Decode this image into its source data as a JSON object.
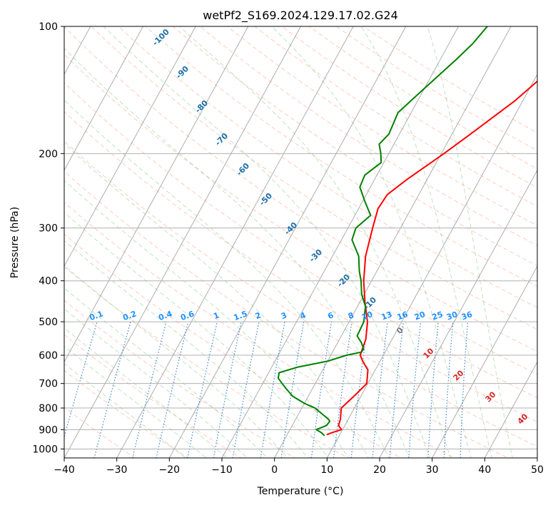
{
  "chart_data": {
    "type": "line",
    "title": "wetPf2_S169.2024.129.17.02.G24",
    "xlabel": "Temperature (°C)",
    "ylabel": "Pressure (hPa)",
    "xlim": [
      -40,
      50
    ],
    "ylim": [
      1050,
      100
    ],
    "y_scale": "log",
    "x_ticks": [
      -40,
      -30,
      -20,
      -10,
      0,
      10,
      20,
      30,
      40,
      50
    ],
    "y_ticks": [
      1000,
      900,
      800,
      700,
      600,
      500,
      400,
      300,
      200,
      100
    ],
    "grid": true,
    "series": [
      {
        "color": "#ff0000",
        "p": [
          925,
          915,
          900,
          880,
          850,
          800,
          750,
          700,
          650,
          620,
          600,
          550,
          500,
          450,
          400,
          350,
          300,
          270,
          250,
          230,
          210,
          200,
          180,
          150,
          130,
          115,
          100
        ],
        "t": [
          7.5,
          8.3,
          9.8,
          8.8,
          8.5,
          7.5,
          8.7,
          9.8,
          8.6,
          6.7,
          5.6,
          5.0,
          3.5,
          1.0,
          -1.5,
          -3.7,
          -5.3,
          -6.3,
          -6.0,
          -3.8,
          -1.0,
          0.5,
          3.5,
          8.5,
          11.5,
          13.5,
          15.0
        ]
      },
      {
        "color": "#008000",
        "p": [
          930,
          915,
          900,
          880,
          860,
          850,
          800,
          780,
          750,
          720,
          700,
          680,
          660,
          640,
          620,
          600,
          590,
          580,
          560,
          540,
          500,
          460,
          430,
          400,
          380,
          350,
          320,
          300,
          280,
          260,
          240,
          225,
          210,
          200,
          190,
          180,
          160,
          140,
          120,
          110,
          100
        ],
        "t": [
          7.2,
          6.3,
          5.0,
          6.5,
          6.7,
          6.2,
          2.5,
          0.0,
          -3.0,
          -5.0,
          -6.3,
          -7.6,
          -8.0,
          -5.0,
          0.0,
          3.0,
          5.5,
          5.6,
          4.5,
          3.0,
          2.8,
          1.5,
          -0.5,
          -2.0,
          -3.3,
          -5.0,
          -8.0,
          -8.5,
          -7.0,
          -9.5,
          -12.0,
          -12.3,
          -10.5,
          -11.5,
          -12.8,
          -12.0,
          -12.5,
          -10.0,
          -7.0,
          -5.5,
          -4.5
        ]
      }
    ],
    "dry_adiabat_labels": [
      "-100",
      "-90",
      "-80",
      "-70",
      "-60",
      "-50",
      "-40",
      "-30",
      "-20",
      "-10"
    ],
    "moist_adiabat_labels": [
      "0",
      "10",
      "20",
      "30",
      "40"
    ],
    "mixing_ratio_labels": [
      "0.1",
      "0.2",
      "0.4",
      "0.6",
      "1",
      "1.5",
      "2",
      "3",
      "4",
      "6",
      "8",
      "10",
      "13",
      "16",
      "20",
      "25",
      "30",
      "36"
    ]
  }
}
